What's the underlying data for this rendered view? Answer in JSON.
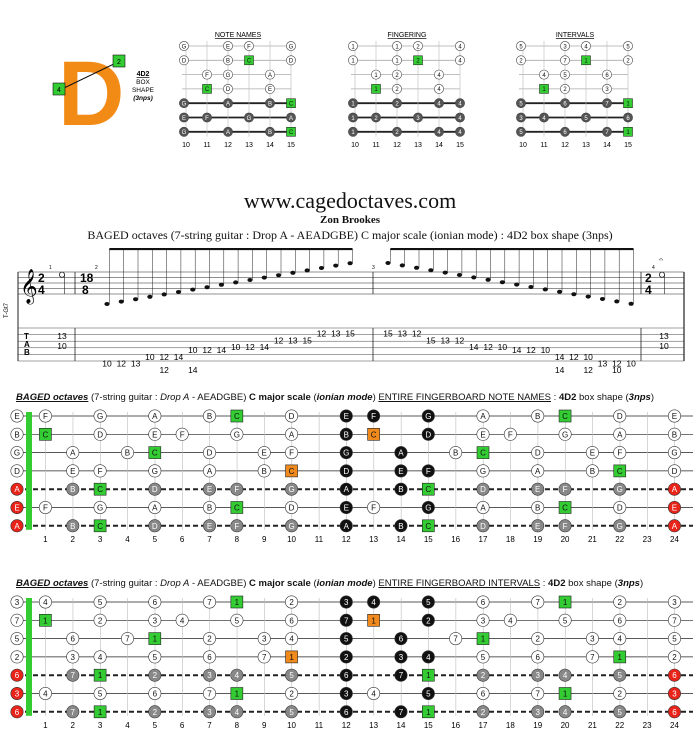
{
  "logo": {
    "letter": "D",
    "finger_top": "2",
    "finger_left": "4",
    "shape_name": "4D2",
    "shape_line1": "BOX",
    "shape_line2": "SHAPE",
    "shape_note": "(3nps)"
  },
  "mini_diagrams": [
    {
      "title": "NOTE NAMES",
      "frets": [
        "10",
        "11",
        "12",
        "13",
        "14",
        "15"
      ],
      "rows": [
        [
          "G",
          "E",
          "F",
          "G"
        ],
        [
          "D",
          "B",
          "C",
          "D"
        ],
        [
          "F",
          "G",
          "A"
        ],
        [
          "C",
          "D",
          "E"
        ],
        [
          "G",
          "A",
          "B",
          "C"
        ],
        [
          "E",
          "F",
          "G",
          "A"
        ],
        [
          "G",
          "A",
          "B",
          "C"
        ]
      ]
    },
    {
      "title": "FINGERING",
      "frets": [
        "10",
        "11",
        "12",
        "13",
        "14",
        "15"
      ],
      "rows": [
        [
          "1",
          "1",
          "2",
          "4"
        ],
        [
          "1",
          "1",
          "2",
          "4"
        ],
        [
          "1",
          "2",
          "4"
        ],
        [
          "1",
          "2",
          "4"
        ],
        [
          "1",
          "2",
          "4",
          "4"
        ],
        [
          "1",
          "2",
          "3",
          "4"
        ],
        [
          "1",
          "2",
          "4",
          "4"
        ]
      ]
    },
    {
      "title": "INTERVALS",
      "frets": [
        "10",
        "11",
        "12",
        "13",
        "14",
        "15"
      ],
      "rows": [
        [
          "5",
          "3",
          "4",
          "5"
        ],
        [
          "2",
          "7",
          "1",
          "2"
        ],
        [
          "4",
          "5",
          "6"
        ],
        [
          "1",
          "2",
          "3"
        ],
        [
          "5",
          "6",
          "7",
          "1"
        ],
        [
          "3",
          "4",
          "5",
          "6"
        ],
        [
          "5",
          "6",
          "7",
          "1"
        ]
      ]
    }
  ],
  "header": {
    "site": "www.cagedoctaves.com",
    "author": "Zon Brookes",
    "subtitle": "BAGED octaves (7-string guitar : Drop A - AEADGBE) C major scale (ionian mode) : 4D2 box shape (3nps)"
  },
  "score": {
    "time_sig_a_top": "2",
    "time_sig_a_bottom": "4",
    "time_sig_b_top": "18",
    "time_sig_b_bottom": "8",
    "tuning_label": "T-Gt7",
    "measure_numbers": [
      "1",
      "2",
      "3",
      "4"
    ],
    "tab_letters": [
      "T",
      "A",
      "B"
    ],
    "tab_m1": [
      [
        "13"
      ],
      [
        "10"
      ]
    ],
    "tab_m2": [
      "10",
      "12",
      "13",
      "10",
      "12",
      "14",
      "10",
      "12",
      "14",
      "10",
      "12",
      "14",
      "12",
      "13",
      "15",
      "12",
      "13",
      "15"
    ],
    "tab_m2_row2": [
      "12",
      "14"
    ],
    "tab_m3": [
      "15",
      "13",
      "12",
      "15",
      "13",
      "12",
      "14",
      "12",
      "10",
      "14",
      "12",
      "10",
      "14",
      "12",
      "10",
      "13",
      "12",
      "10"
    ],
    "tab_m3_row2": [
      "14",
      "12",
      "10"
    ],
    "tab_m4": [
      [
        "13"
      ],
      [
        "10"
      ]
    ]
  },
  "fretboard_notes": {
    "title_parts": [
      "BAGED octaves",
      " (7-string guitar : ",
      "Drop A",
      " - AEADGBE) ",
      "C major scale",
      " (",
      "ionian mode",
      ") ",
      "ENTIRE FINGERBOARD  NOTE NAMES",
      " : ",
      "4D2",
      " box shape (",
      "3nps",
      ")"
    ],
    "fret_numbers": [
      "1",
      "2",
      "3",
      "4",
      "5",
      "6",
      "7",
      "8",
      "9",
      "10",
      "11",
      "12",
      "13",
      "14",
      "15",
      "16",
      "17",
      "18",
      "19",
      "20",
      "21",
      "22",
      "23",
      "24"
    ],
    "open": [
      "E",
      "B",
      "G",
      "D",
      "A",
      "E",
      "A"
    ]
  },
  "fretboard_intervals": {
    "title_parts": [
      "BAGED octaves",
      " (7-string guitar : ",
      "Drop A",
      " - AEADGBE) ",
      "C major scale",
      " (",
      "ionian mode",
      ") ",
      "ENTIRE FINGERBOARD  INTERVALS",
      " : ",
      "4D2",
      " box shape (",
      "3nps",
      ")"
    ],
    "fret_numbers": [
      "1",
      "2",
      "3",
      "4",
      "5",
      "6",
      "7",
      "8",
      "9",
      "10",
      "11",
      "12",
      "13",
      "14",
      "15",
      "16",
      "17",
      "18",
      "19",
      "20",
      "21",
      "22",
      "23",
      "24"
    ],
    "open": [
      "3",
      "7",
      "5",
      "2",
      "6",
      "3",
      "6"
    ]
  },
  "colors": {
    "root_green": "#33cc33",
    "box_black": "#111111",
    "orange": "#f08a1c",
    "red": "#e8231a",
    "logo_orange": "#f28a16",
    "gray": "#777777"
  }
}
